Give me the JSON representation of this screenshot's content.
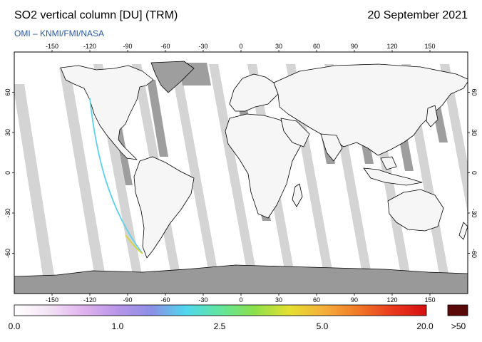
{
  "header": {
    "title": "SO2 vertical column [DU] (TRM)",
    "date": "20 September 2021",
    "credit": "OMI  –  KNMI/FMI/NASA"
  },
  "map": {
    "projection": "plate-carree",
    "lon_range": [
      -180,
      180
    ],
    "lat_range": [
      -90,
      90
    ],
    "lon_ticks": [
      "-150",
      "-120",
      "-90",
      "-60",
      "-30",
      "0",
      "30",
      "60",
      "90",
      "120",
      "150"
    ],
    "lat_ticks": [
      "60",
      "30",
      "0",
      "-30",
      "-60"
    ],
    "grid": false,
    "colors": {
      "background": "#ffffff",
      "light_swath": "#d4d4d4",
      "dark_swath": "#9e9e9e",
      "coastline": "#000000",
      "antarctica": "#999999"
    }
  },
  "colorbar": {
    "stops": [
      "#ffffff",
      "#f3e4f6",
      "#e0b3ee",
      "#b895e8",
      "#8c8fe6",
      "#4fd8ee",
      "#62e69e",
      "#8be04a",
      "#e4e030",
      "#f5b03a",
      "#f07a26",
      "#ea3a1e",
      "#d60e10"
    ],
    "max_color": "#5a0808",
    "labels": [
      "0.0",
      "1.0",
      "2.5",
      "5.0",
      "20.0"
    ],
    "max_label": ">50"
  }
}
